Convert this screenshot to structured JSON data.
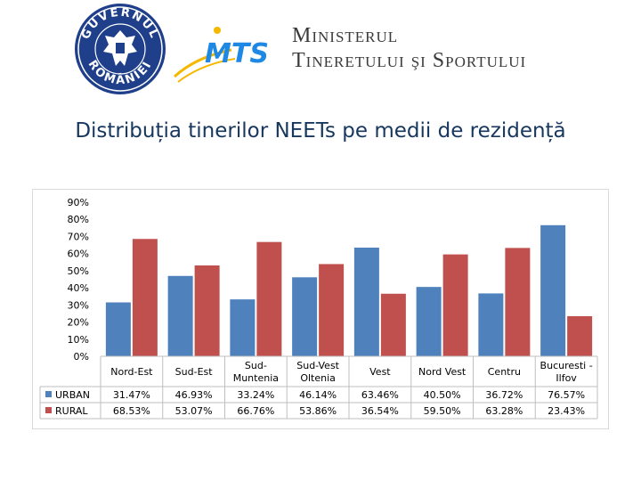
{
  "header": {
    "seal_text_top": "GUVERNUL",
    "seal_text_bottom": "ROMÂNIEI",
    "logo_text": "MTS",
    "ministry_line1": "Ministerul",
    "ministry_line2": "Tineretului şi Sportului"
  },
  "chart_data": {
    "type": "bar",
    "title": "Distribuția tinerilor NEETs pe medii de rezidență",
    "categories": [
      "Nord-Est",
      "Sud-Est",
      "Sud-Muntenia",
      "Sud-Vest Oltenia",
      "Vest",
      "Nord Vest",
      "Centru",
      "Bucuresti - Ilfov"
    ],
    "category_lines": [
      [
        "Nord-Est"
      ],
      [
        "Sud-Est"
      ],
      [
        "Sud-",
        "Muntenia"
      ],
      [
        "Sud-Vest",
        "Oltenia"
      ],
      [
        "Vest"
      ],
      [
        "Nord Vest"
      ],
      [
        "Centru"
      ],
      [
        "Bucuresti -",
        "Ilfov"
      ]
    ],
    "series": [
      {
        "name": "URBAN",
        "color": "#4f81bd",
        "values": [
          31.47,
          46.93,
          33.24,
          46.14,
          63.46,
          40.5,
          36.72,
          76.57
        ],
        "labels": [
          "31.47%",
          "46.93%",
          "33.24%",
          "46.14%",
          "63.46%",
          "40.50%",
          "36.72%",
          "76.57%"
        ]
      },
      {
        "name": "RURAL",
        "color": "#c0504d",
        "values": [
          68.53,
          53.07,
          66.76,
          53.86,
          36.54,
          59.5,
          63.28,
          23.43
        ],
        "labels": [
          "68.53%",
          "53.07%",
          "66.76%",
          "53.86%",
          "36.54%",
          "59.50%",
          "63.28%",
          "23.43%"
        ]
      }
    ],
    "ylim": [
      0,
      90
    ],
    "yticks": [
      "0%",
      "10%",
      "20%",
      "30%",
      "40%",
      "50%",
      "60%",
      "70%",
      "80%",
      "90%"
    ],
    "xlabel": "",
    "ylabel": "",
    "legend": "data-table",
    "grid": false
  }
}
